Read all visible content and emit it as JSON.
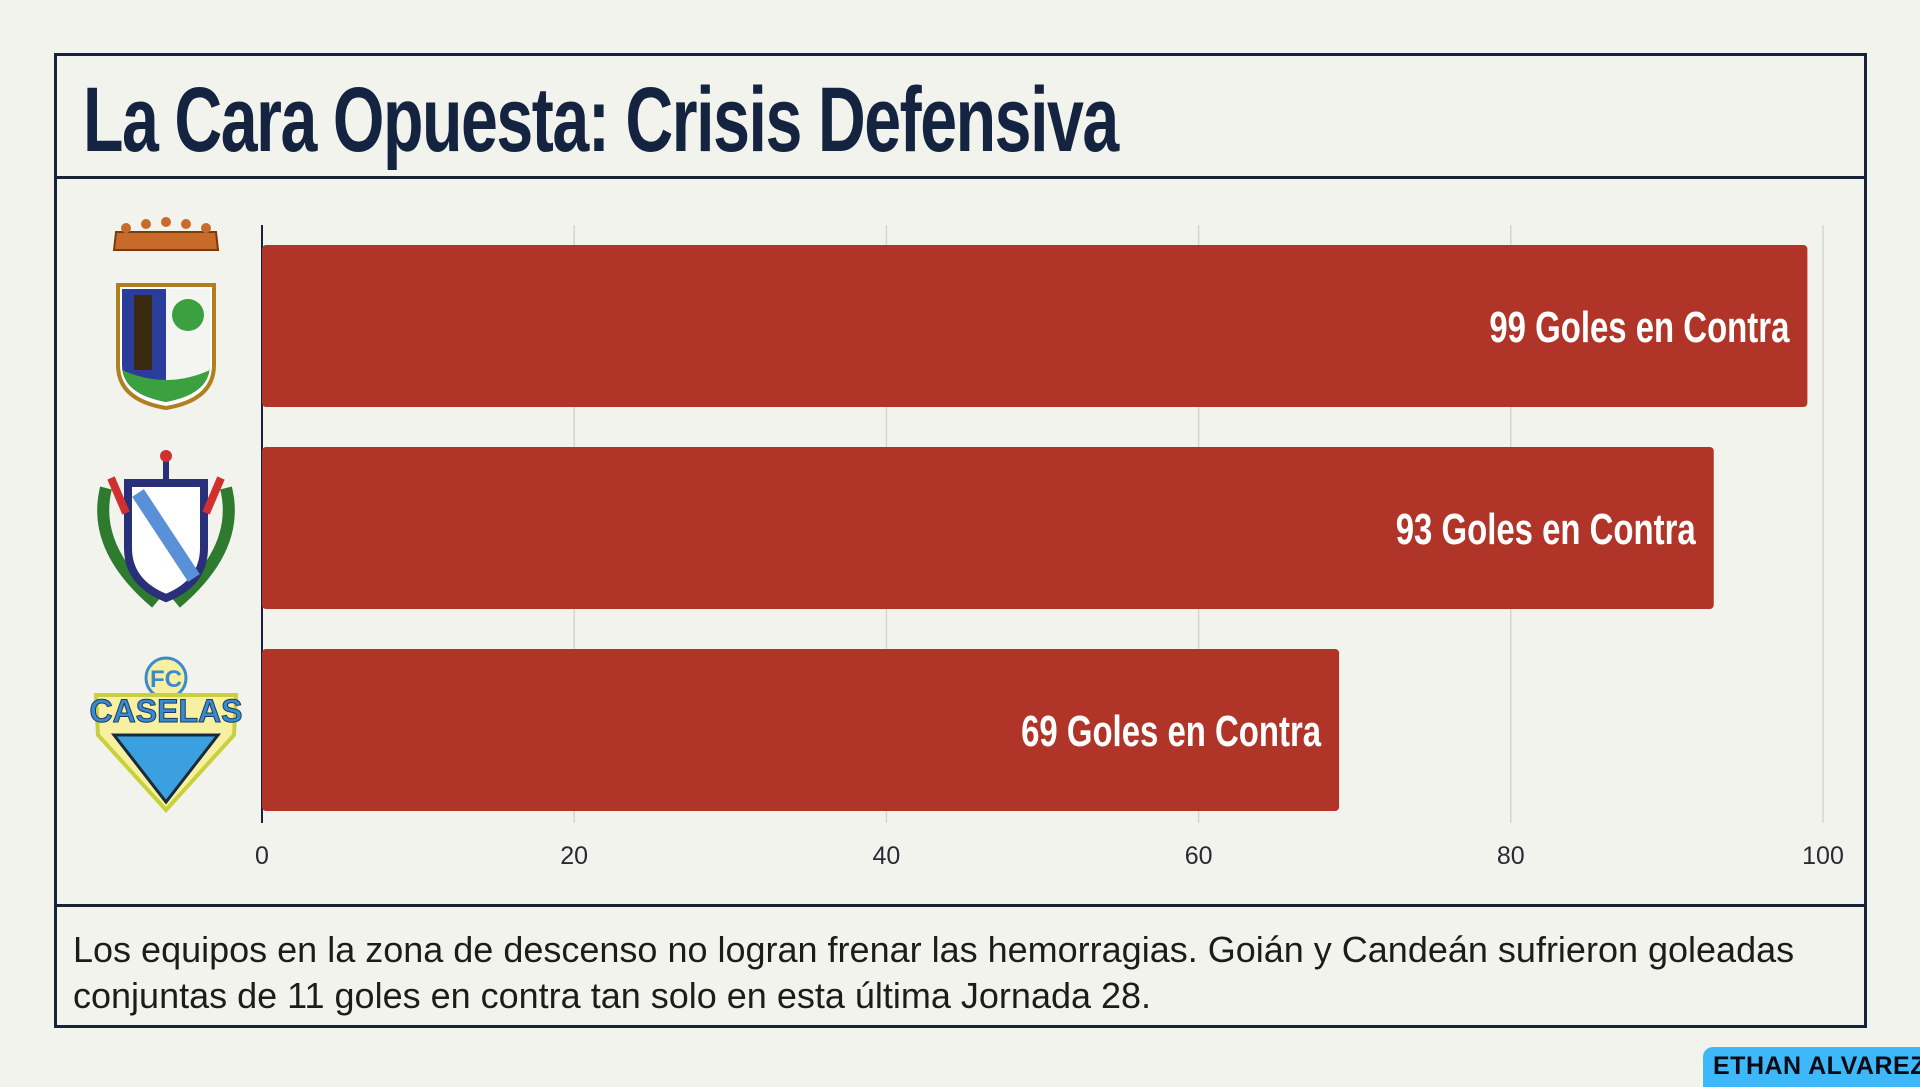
{
  "title": "La Cara Opuesta: Crisis Defensiva",
  "footer_text": "Los equipos en la zona de descenso no logran frenar las hemorragias. Goián y Candeán sufrieron goleadas conjuntas de 11 goles en contra tan solo en esta última Jornada 28.",
  "badge": "ETHAN ALVAREZ",
  "colors": {
    "bar": "#b03428",
    "title": "#14233f",
    "background": "#f3f3ee",
    "badge": "#3db8fb"
  },
  "chart_data": {
    "type": "bar",
    "orientation": "horizontal",
    "categories": [
      "crest-1",
      "crest-2",
      "crest-3"
    ],
    "category_icons": [
      "crowned-shield-crest",
      "laurel-shield-crest",
      "fc-caselas-crest"
    ],
    "values": [
      99,
      93,
      69
    ],
    "data_labels": [
      "99 Goles en Contra",
      "93 Goles en Contra",
      "69 Goles en Contra"
    ],
    "xlim": [
      0,
      100
    ],
    "xticks": [
      "0",
      "20",
      "40",
      "60",
      "80",
      "100"
    ],
    "grid": true,
    "title": "La Cara Opuesta: Crisis Defensiva"
  }
}
